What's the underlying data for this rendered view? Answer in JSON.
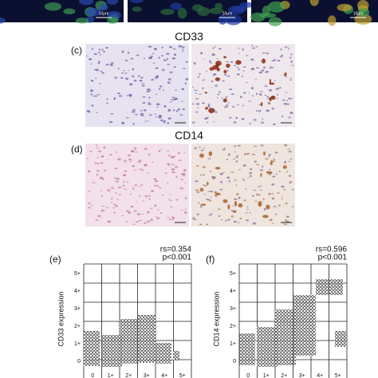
{
  "top_panels": {
    "scale_labels": [
      "10μm",
      "10μm",
      "10μm"
    ]
  },
  "panel_c": {
    "label": "(c)",
    "title": "CD33"
  },
  "panel_d": {
    "label": "(d)",
    "title": "CD14"
  },
  "panel_e": {
    "label": "(e)",
    "stat": "rs=0.354",
    "p": "p<0.001",
    "y_label": "CD33 expression",
    "y_ticks": [
      "5+",
      "4+",
      "3+",
      "2+",
      "1+",
      "0"
    ],
    "x_ticks": [
      "0",
      "1+",
      "2+",
      "3+",
      "4+",
      "5+"
    ]
  },
  "panel_f": {
    "label": "(f)",
    "stat": "rs=0.596",
    "p": "p<0.001",
    "y_label": "CD14 expression",
    "y_ticks": [
      "5+",
      "4+",
      "3+",
      "2+",
      "1+",
      "0"
    ],
    "x_ticks": [
      "0",
      "1+",
      "2+",
      "3+",
      "4+",
      "5+"
    ]
  }
}
